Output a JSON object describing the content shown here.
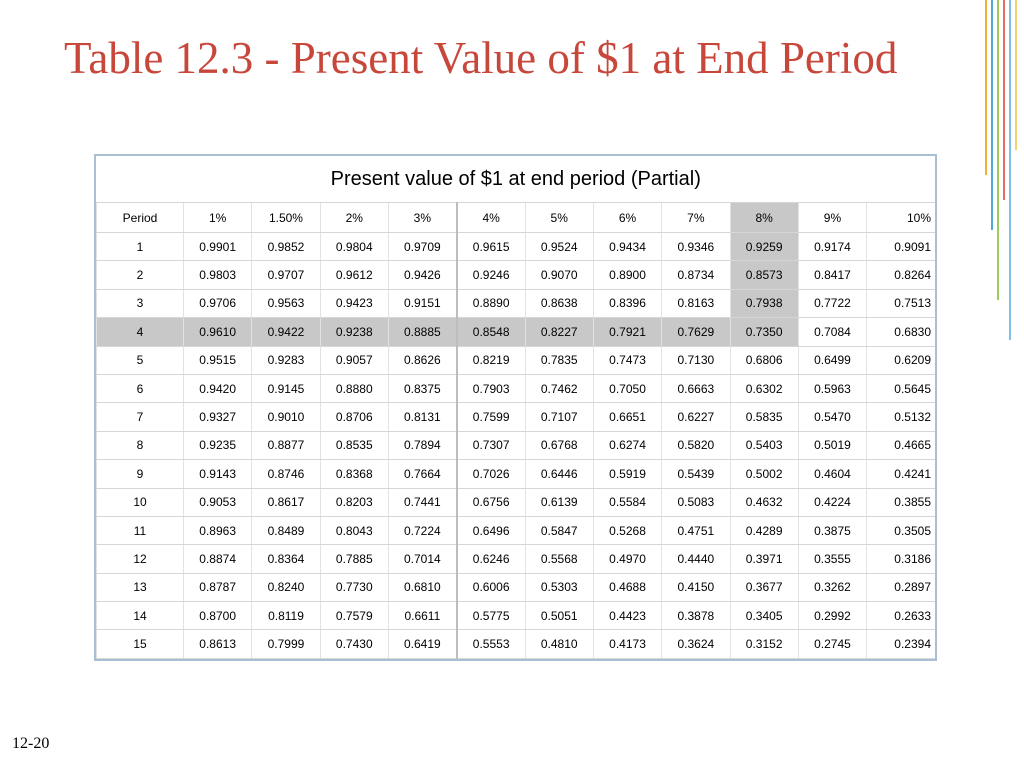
{
  "slide": {
    "title": "Table 12.3 - Present Value of $1 at End Period",
    "page_number": "12-20"
  },
  "table": {
    "caption": "Present value of $1 at end period (Partial)",
    "header": [
      "Period",
      "1%",
      "1.50%",
      "2%",
      "3%",
      "4%",
      "5%",
      "6%",
      "7%",
      "8%",
      "9%",
      "10%"
    ],
    "rows": [
      [
        "1",
        "0.9901",
        "0.9852",
        "0.9804",
        "0.9709",
        "0.9615",
        "0.9524",
        "0.9434",
        "0.9346",
        "0.9259",
        "0.9174",
        "0.9091"
      ],
      [
        "2",
        "0.9803",
        "0.9707",
        "0.9612",
        "0.9426",
        "0.9246",
        "0.9070",
        "0.8900",
        "0.8734",
        "0.8573",
        "0.8417",
        "0.8264"
      ],
      [
        "3",
        "0.9706",
        "0.9563",
        "0.9423",
        "0.9151",
        "0.8890",
        "0.8638",
        "0.8396",
        "0.8163",
        "0.7938",
        "0.7722",
        "0.7513"
      ],
      [
        "4",
        "0.9610",
        "0.9422",
        "0.9238",
        "0.8885",
        "0.8548",
        "0.8227",
        "0.7921",
        "0.7629",
        "0.7350",
        "0.7084",
        "0.6830"
      ],
      [
        "5",
        "0.9515",
        "0.9283",
        "0.9057",
        "0.8626",
        "0.8219",
        "0.7835",
        "0.7473",
        "0.7130",
        "0.6806",
        "0.6499",
        "0.6209"
      ],
      [
        "6",
        "0.9420",
        "0.9145",
        "0.8880",
        "0.8375",
        "0.7903",
        "0.7462",
        "0.7050",
        "0.6663",
        "0.6302",
        "0.5963",
        "0.5645"
      ],
      [
        "7",
        "0.9327",
        "0.9010",
        "0.8706",
        "0.8131",
        "0.7599",
        "0.7107",
        "0.6651",
        "0.6227",
        "0.5835",
        "0.5470",
        "0.5132"
      ],
      [
        "8",
        "0.9235",
        "0.8877",
        "0.8535",
        "0.7894",
        "0.7307",
        "0.6768",
        "0.6274",
        "0.5820",
        "0.5403",
        "0.5019",
        "0.4665"
      ],
      [
        "9",
        "0.9143",
        "0.8746",
        "0.8368",
        "0.7664",
        "0.7026",
        "0.6446",
        "0.5919",
        "0.5439",
        "0.5002",
        "0.4604",
        "0.4241"
      ],
      [
        "10",
        "0.9053",
        "0.8617",
        "0.8203",
        "0.7441",
        "0.6756",
        "0.6139",
        "0.5584",
        "0.5083",
        "0.4632",
        "0.4224",
        "0.3855"
      ],
      [
        "11",
        "0.8963",
        "0.8489",
        "0.8043",
        "0.7224",
        "0.6496",
        "0.5847",
        "0.5268",
        "0.4751",
        "0.4289",
        "0.3875",
        "0.3505"
      ],
      [
        "12",
        "0.8874",
        "0.8364",
        "0.7885",
        "0.7014",
        "0.6246",
        "0.5568",
        "0.4970",
        "0.4440",
        "0.3971",
        "0.3555",
        "0.3186"
      ],
      [
        "13",
        "0.8787",
        "0.8240",
        "0.7730",
        "0.6810",
        "0.6006",
        "0.5303",
        "0.4688",
        "0.4150",
        "0.3677",
        "0.3262",
        "0.2897"
      ],
      [
        "14",
        "0.8700",
        "0.8119",
        "0.7579",
        "0.6611",
        "0.5775",
        "0.5051",
        "0.4423",
        "0.3878",
        "0.3405",
        "0.2992",
        "0.2633"
      ],
      [
        "15",
        "0.8613",
        "0.7999",
        "0.7430",
        "0.6419",
        "0.5553",
        "0.4810",
        "0.4173",
        "0.3624",
        "0.3152",
        "0.2745",
        "0.2394"
      ]
    ]
  }
}
